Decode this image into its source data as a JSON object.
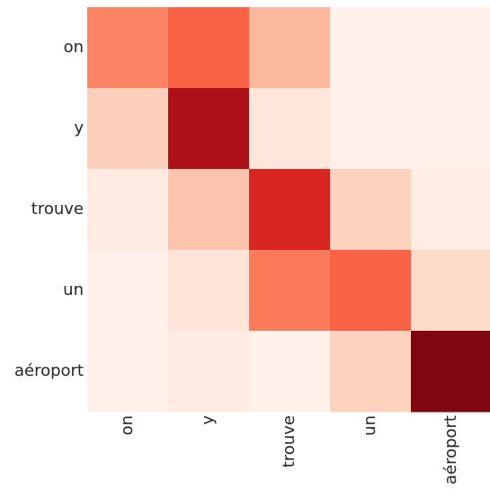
{
  "chart_data": {
    "type": "heatmap",
    "title": "",
    "xlabel": "",
    "ylabel": "",
    "x_categories": [
      "on",
      "y",
      "trouve",
      "un",
      "aéroport"
    ],
    "y_categories": [
      "on",
      "y",
      "trouve",
      "un",
      "aéroport"
    ],
    "values": [
      [
        0.42,
        0.52,
        0.26,
        0.02,
        0.02
      ],
      [
        0.18,
        0.85,
        0.09,
        0.03,
        0.02
      ],
      [
        0.06,
        0.22,
        0.7,
        0.17,
        0.05
      ],
      [
        0.03,
        0.1,
        0.45,
        0.52,
        0.14
      ],
      [
        0.03,
        0.06,
        0.02,
        0.17,
        0.95
      ]
    ],
    "value_range": [
      0,
      1
    ],
    "colormap": "Reds",
    "colorbar": false,
    "grid": false
  }
}
